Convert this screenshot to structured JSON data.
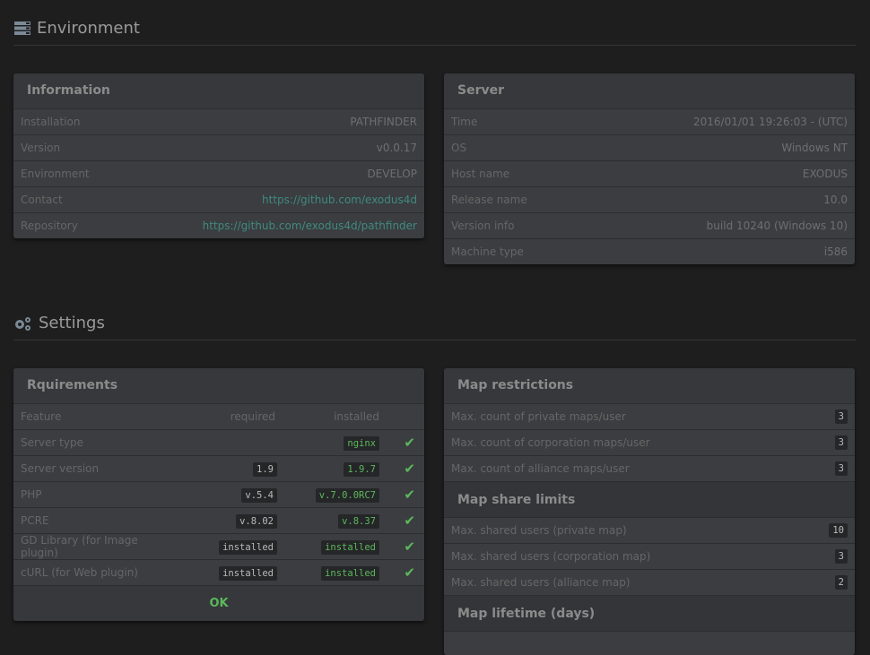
{
  "environment": {
    "title": "Environment",
    "icon": "server-icon"
  },
  "information": {
    "title": "Information",
    "rows": [
      {
        "label": "Installation",
        "value": "PATHFINDER"
      },
      {
        "label": "Version",
        "value": "v0.0.17"
      },
      {
        "label": "Environment",
        "value": "DEVELOP"
      },
      {
        "label": "Contact",
        "value": "https://github.com/exodus4d",
        "link": true
      },
      {
        "label": "Repository",
        "value": "https://github.com/exodus4d/pathfinder",
        "link": true
      }
    ]
  },
  "server": {
    "title": "Server",
    "rows": [
      {
        "label": "Time",
        "value": "2016/01/01 19:26:03 - (UTC)"
      },
      {
        "label": "OS",
        "value": "Windows NT"
      },
      {
        "label": "Host name",
        "value": "EXODUS"
      },
      {
        "label": "Release name",
        "value": "10.0"
      },
      {
        "label": "Version info",
        "value": "build 10240 (Windows 10)"
      },
      {
        "label": "Machine type",
        "value": "i586"
      }
    ]
  },
  "settings": {
    "title": "Settings",
    "icon": "gears-icon"
  },
  "requirements": {
    "title": "Rquirements",
    "columns": [
      "Feature",
      "required",
      "installed"
    ],
    "rows": [
      {
        "feature": "Server type",
        "required": "",
        "installed": "nginx"
      },
      {
        "feature": "Server version",
        "required": "1.9",
        "installed": "1.9.7"
      },
      {
        "feature": "PHP",
        "required": "v.5.4",
        "installed": "v.7.0.0RC7"
      },
      {
        "feature": "PCRE",
        "required": "v.8.02",
        "installed": "v.8.37"
      },
      {
        "feature": "GD Library (for Image plugin)",
        "required": "installed",
        "installed": "installed"
      },
      {
        "feature": "cURL (for Web plugin)",
        "required": "installed",
        "installed": "installed"
      }
    ],
    "status": "OK",
    "check_icon": "✔",
    "accent": "#5cb85c"
  },
  "map_restrictions": {
    "title": "Map restrictions",
    "rows": [
      {
        "label": "Max. count of private maps/user",
        "value": "3"
      },
      {
        "label": "Max. count of corporation maps/user",
        "value": "3"
      },
      {
        "label": "Max. count of alliance maps/user",
        "value": "3"
      }
    ],
    "share_title": "Map share limits",
    "share_rows": [
      {
        "label": "Max. shared users (private map)",
        "value": "10"
      },
      {
        "label": "Max. shared users (corporation map)",
        "value": "3"
      },
      {
        "label": "Max. shared users (alliance map)",
        "value": "2"
      }
    ],
    "lifetime_title": "Map lifetime (days)"
  }
}
